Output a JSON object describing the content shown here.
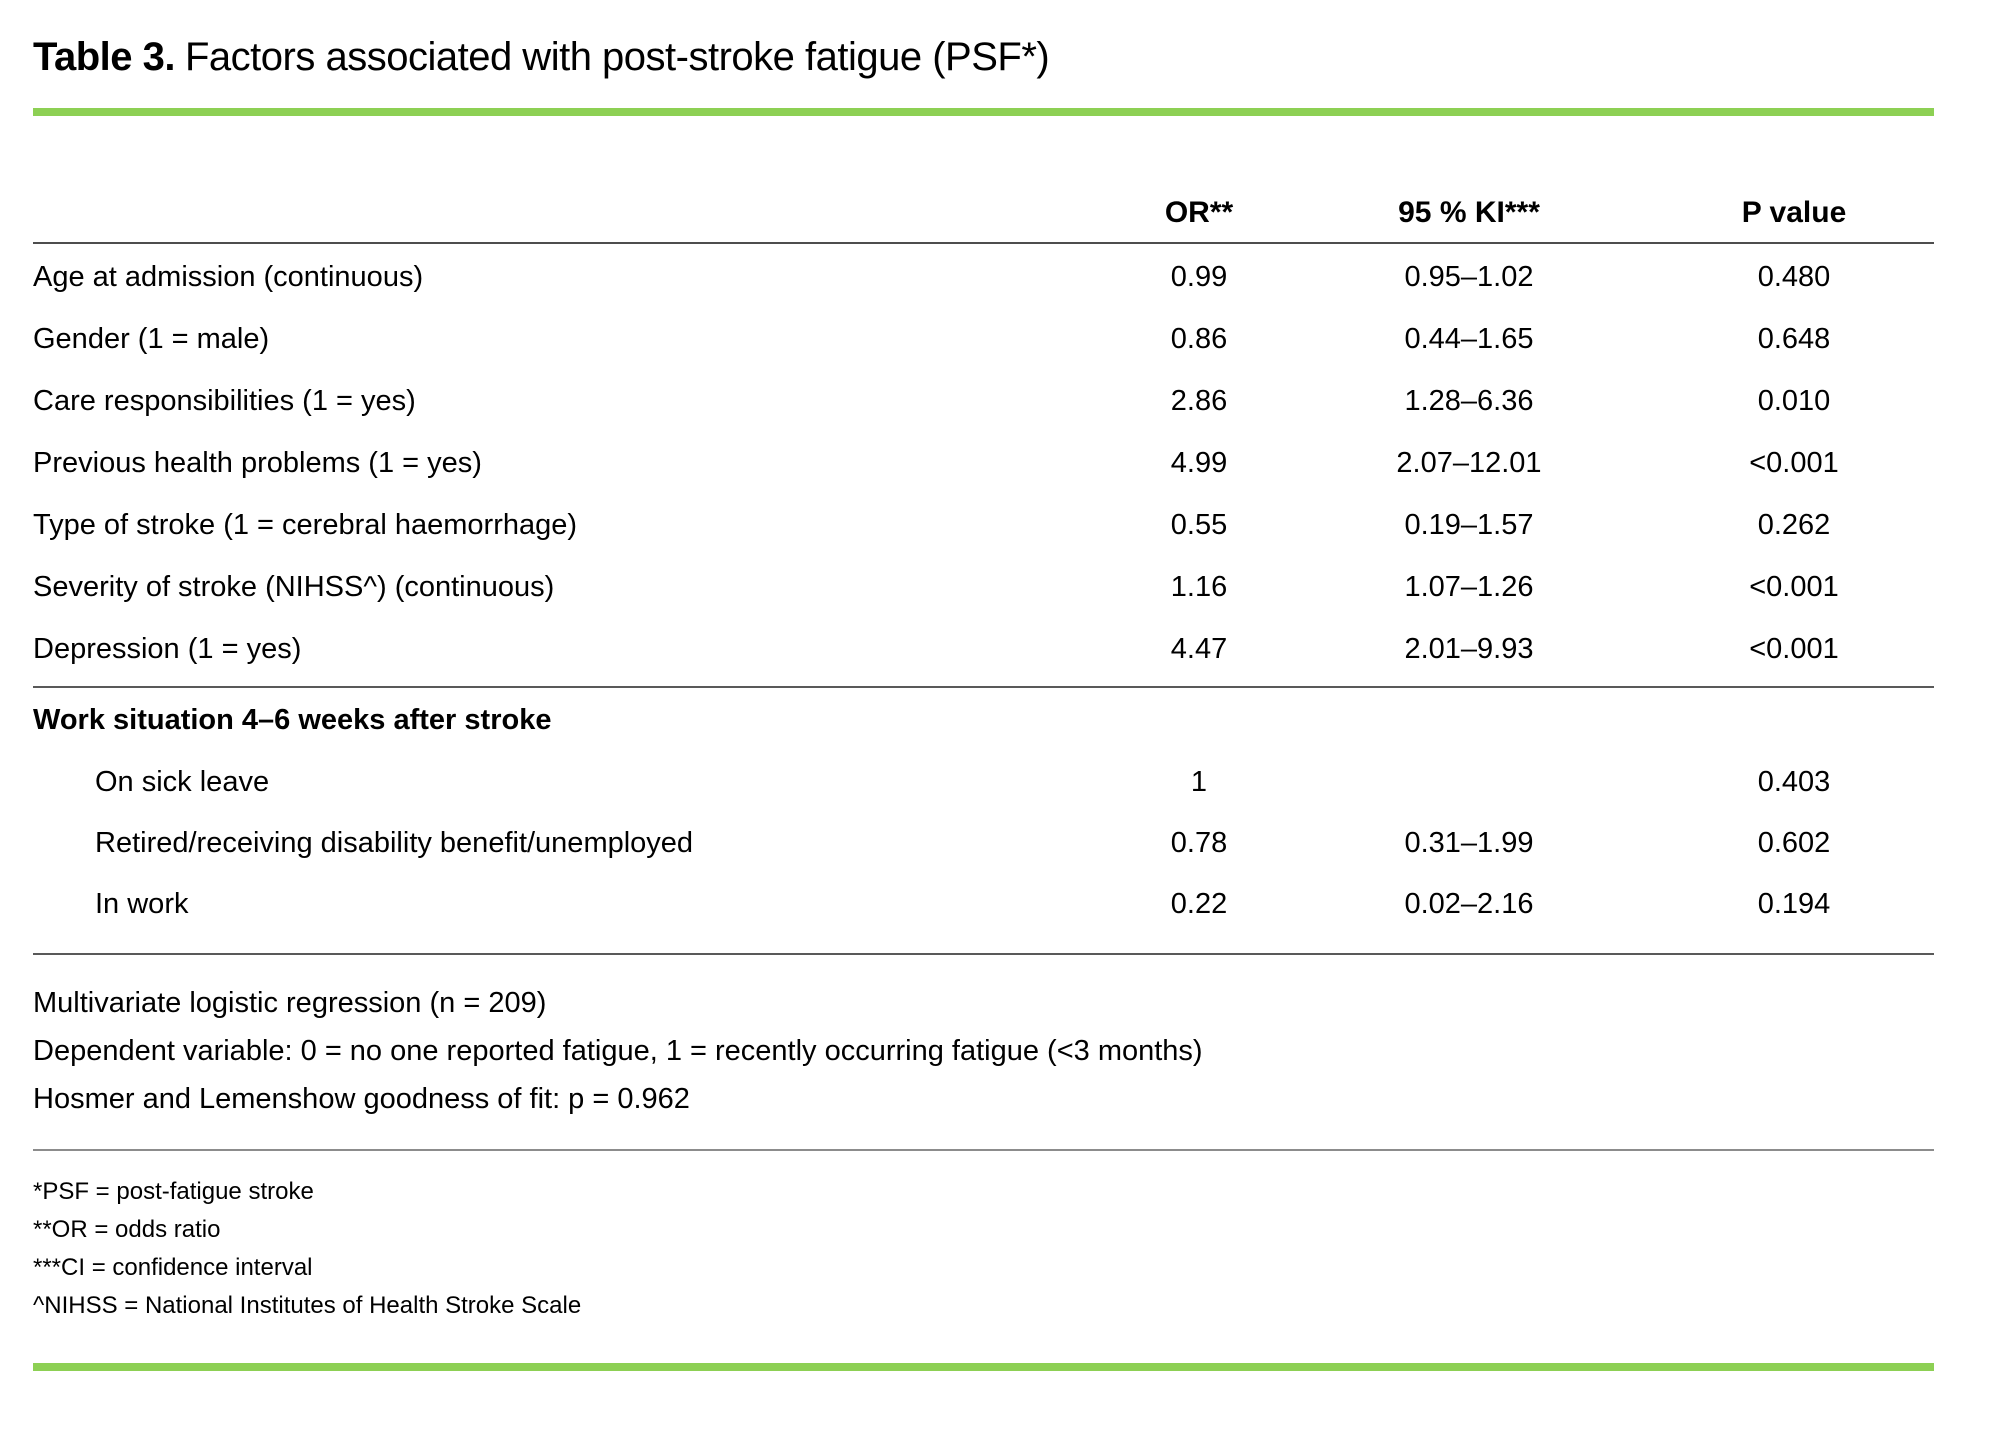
{
  "title": {
    "prefix": "Table 3.",
    "text": "Factors associated with post-stroke fatigue (PSF*)"
  },
  "colors": {
    "accent_green": "#8DD054",
    "rule_dark": "#4d4d4d",
    "rule_light": "#8c8c8c"
  },
  "table": {
    "columns": {
      "or": "OR**",
      "ki": "95 % KI***",
      "p": "P value"
    },
    "rows": [
      {
        "label": "Age at admission (continuous)",
        "or": "0.99",
        "ki": "0.95–1.02",
        "p": "0.480"
      },
      {
        "label": "Gender (1 = male)",
        "or": "0.86",
        "ki": "0.44–1.65",
        "p": "0.648"
      },
      {
        "label": "Care responsibilities (1 = yes)",
        "or": "2.86",
        "ki": "1.28–6.36",
        "p": "0.010"
      },
      {
        "label": "Previous health problems (1 = yes)",
        "or": "4.99",
        "ki": "2.07–12.01",
        "p": "<0.001"
      },
      {
        "label": "Type of stroke (1 = cerebral haemorrhage)",
        "or": "0.55",
        "ki": "0.19–1.57",
        "p": "0.262"
      },
      {
        "label": "Severity of stroke (NIHSS^) (continuous)",
        "or": "1.16",
        "ki": "1.07–1.26",
        "p": "<0.001"
      },
      {
        "label": "Depression (1 = yes)",
        "or": "4.47",
        "ki": "2.01–9.93",
        "p": "<0.001"
      }
    ],
    "section": {
      "header": "Work situation 4–6 weeks after stroke",
      "rows": [
        {
          "label": "On sick leave",
          "or": "1",
          "ki": "",
          "p": "0.403"
        },
        {
          "label": "Retired/receiving disability benefit/unemployed",
          "or": "0.78",
          "ki": "0.31–1.99",
          "p": "0.602"
        },
        {
          "label": "In work",
          "or": "0.22",
          "ki": "0.02–2.16",
          "p": "0.194"
        }
      ]
    }
  },
  "notes": [
    "Multivariate logistic regression (n = 209)",
    "Dependent variable: 0 = no one reported fatigue, 1 = recently occurring fatigue (<3 months)",
    "Hosmer and Lemenshow goodness of fit: p = 0.962"
  ],
  "footnotes": [
    "*PSF = post-fatigue stroke",
    "**OR = odds ratio",
    "***CI = confidence interval",
    "^NIHSS = National Institutes of Health Stroke Scale"
  ]
}
